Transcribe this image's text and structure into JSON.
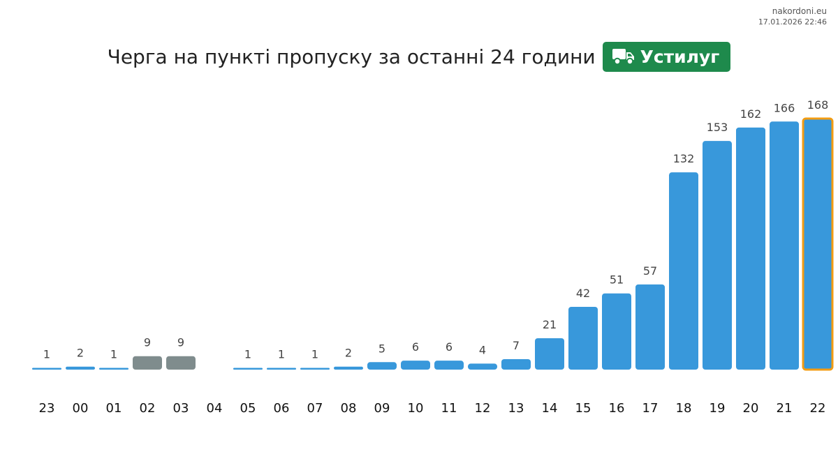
{
  "header": {
    "site": "nakordoni.eu",
    "timestamp": "17.01.2026 22:46",
    "title": "Черга на пункті пропуску за останні 24 години",
    "checkpoint_name": "Устилуг",
    "badge_icon": "truck-icon",
    "badge_color": "#1e8a4c"
  },
  "colors": {
    "bar": "#3898db",
    "bar_unavailable": "#7f8c8d",
    "highlight_outline": "#f39c12",
    "value_label": "#444444",
    "tick_label": "#111111"
  },
  "chart_data": {
    "type": "bar",
    "title": "Черга на пункті пропуску за останні 24 години",
    "categories": [
      "23",
      "00",
      "01",
      "02",
      "03",
      "04",
      "05",
      "06",
      "07",
      "08",
      "09",
      "10",
      "11",
      "12",
      "13",
      "14",
      "15",
      "16",
      "17",
      "18",
      "19",
      "20",
      "21",
      "22"
    ],
    "values": [
      1,
      2,
      1,
      9,
      9,
      null,
      1,
      1,
      1,
      2,
      5,
      6,
      6,
      4,
      7,
      21,
      42,
      51,
      57,
      132,
      153,
      162,
      166,
      168
    ],
    "value_labels": [
      "1",
      "2",
      "1",
      "9",
      "9",
      "",
      "1",
      "1",
      "1",
      "2",
      "5",
      "6",
      "6",
      "4",
      "7",
      "21",
      "42",
      "51",
      "57",
      "132",
      "153",
      "162",
      "166",
      "168"
    ],
    "gray_categories": [
      "02",
      "03"
    ],
    "highlighted_category": "22",
    "ylim": [
      0,
      168
    ],
    "grid": false,
    "legend": "none"
  }
}
